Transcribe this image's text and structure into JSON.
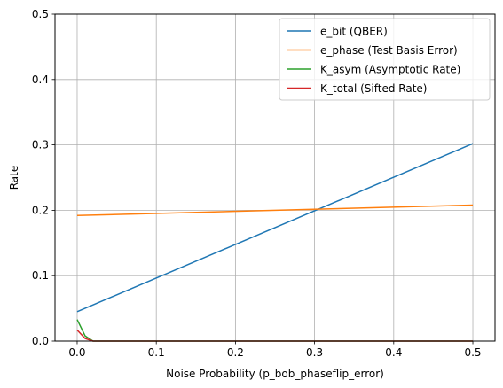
{
  "chart_data": {
    "type": "line",
    "title": "",
    "xlabel": "Noise Probability (p_bob_phaseflip_error)",
    "ylabel": "Rate",
    "xlim": [
      -0.028,
      0.528
    ],
    "ylim": [
      0.0,
      0.5
    ],
    "xticks": [
      0.0,
      0.1,
      0.2,
      0.3,
      0.4,
      0.5
    ],
    "xtick_labels": [
      "0.0",
      "0.1",
      "0.2",
      "0.3",
      "0.4",
      "0.5"
    ],
    "yticks": [
      0.0,
      0.1,
      0.2,
      0.3,
      0.4,
      0.5
    ],
    "ytick_labels": [
      "0.0",
      "0.1",
      "0.2",
      "0.3",
      "0.4",
      "0.5"
    ],
    "grid": true,
    "legend_position": "top-right",
    "series": [
      {
        "name": "e_bit (QBER)",
        "color": "#1f77b4",
        "x": [
          0.0,
          0.5
        ],
        "y": [
          0.045,
          0.302
        ]
      },
      {
        "name": "e_phase (Test Basis Error)",
        "color": "#ff7f0e",
        "x": [
          0.0,
          0.5
        ],
        "y": [
          0.192,
          0.208
        ]
      },
      {
        "name": "K_asym (Asymptotic Rate)",
        "color": "#2ca02c",
        "x": [
          0.0,
          0.01,
          0.02,
          0.1,
          0.2,
          0.3,
          0.4,
          0.5
        ],
        "y": [
          0.033,
          0.008,
          0.0,
          0.0,
          0.0,
          0.0,
          0.0,
          0.0
        ]
      },
      {
        "name": "K_total (Sifted Rate)",
        "color": "#d62728",
        "x": [
          0.0,
          0.01,
          0.02,
          0.1,
          0.2,
          0.3,
          0.4,
          0.5
        ],
        "y": [
          0.017,
          0.004,
          0.0,
          0.0,
          0.0,
          0.0,
          0.0,
          0.0
        ]
      }
    ]
  }
}
